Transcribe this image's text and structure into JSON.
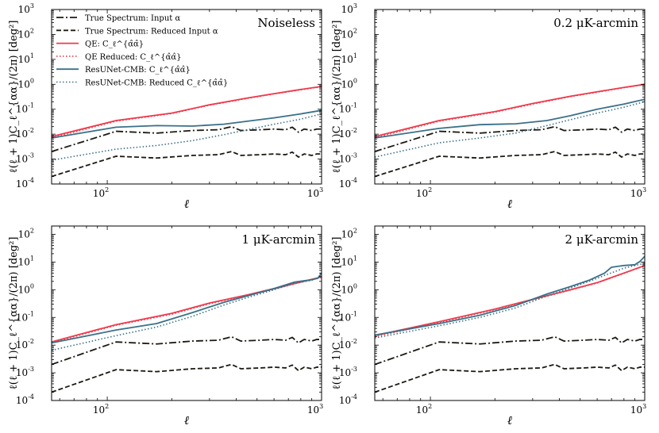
{
  "chart_data": {
    "type": "line",
    "layout": "2x2 grid of log-log line plots",
    "xlabel": "ℓ",
    "ylabel": "ℓ(ℓ + 1)C_ℓ^{αα}/(2π) [deg²]",
    "xscale": "log",
    "yscale": "log",
    "xlim": [
      55,
      1000
    ],
    "x_ticks": [
      100,
      1000
    ],
    "x_tick_labels": [
      "10^2",
      "10^3"
    ],
    "x_tick_base": "10",
    "x_tick_exponents": [
      "2",
      "3"
    ],
    "y_tick_exponents": [
      "-4",
      "-3",
      "-2",
      "-1",
      "0",
      "1",
      "2",
      "3"
    ],
    "legend": {
      "location": "top-left of first panel",
      "entries": [
        {
          "label": "True Spectrum: Input α",
          "color": "#1c1a12",
          "style": "dashdot"
        },
        {
          "label": "True Spectrum: Reduced Input α",
          "color": "#1c1a12",
          "style": "dashed"
        },
        {
          "label": "QE: C_ℓ^{α̂α̂}",
          "color": "#ee3a4c",
          "style": "solid"
        },
        {
          "label": "QE Reduced: C_ℓ^{α̂α̂}",
          "color": "#ee3a4c",
          "style": "dotted"
        },
        {
          "label": "ResUNet-CMB: C_ℓ^{α̂α̂}",
          "color": "#3a7088",
          "style": "solid"
        },
        {
          "label": "ResUNet-CMB: Reduced C_ℓ^{α̂α̂}",
          "color": "#3a7088",
          "style": "dotted"
        }
      ]
    },
    "panels": [
      {
        "title": "Noiseless",
        "ylim": [
          0.0001,
          1000
        ],
        "series": [
          {
            "name": "True Spectrum: Input α",
            "x": [
              55,
              110,
              170,
              250,
              330,
              380,
              420,
              520,
              600,
              680,
              730,
              780,
              830,
              900,
              950,
              1000
            ],
            "y": [
              0.002,
              0.013,
              0.011,
              0.014,
              0.015,
              0.02,
              0.014,
              0.015,
              0.016,
              0.015,
              0.019,
              0.012,
              0.016,
              0.014,
              0.016,
              0.016
            ]
          },
          {
            "name": "True Spectrum: Reduced Input α",
            "x": [
              55,
              110,
              170,
              250,
              330,
              380,
              420,
              520,
              600,
              680,
              730,
              780,
              830,
              900,
              950,
              1000
            ],
            "y": [
              0.0002,
              0.0013,
              0.0011,
              0.0014,
              0.0015,
              0.002,
              0.0014,
              0.0015,
              0.0016,
              0.0015,
              0.0019,
              0.0012,
              0.0016,
              0.0014,
              0.0016,
              0.0016
            ]
          },
          {
            "name": "QE: C_ℓ^{α̂α̂}",
            "x": [
              55,
              110,
              200,
              300,
              450,
              600,
              800,
              1000
            ],
            "y": [
              0.008,
              0.035,
              0.07,
              0.15,
              0.28,
              0.42,
              0.62,
              0.82
            ]
          },
          {
            "name": "QE Reduced: C_ℓ^{α̂α̂}",
            "x": [
              55,
              110,
              200,
              300,
              450,
              600,
              800,
              1000
            ],
            "y": [
              0.007,
              0.033,
              0.067,
              0.145,
              0.27,
              0.41,
              0.6,
              0.8
            ]
          },
          {
            "name": "ResUNet-CMB: C_ℓ^{α̂α̂}",
            "x": [
              55,
              80,
              110,
              170,
              250,
              350,
              450,
              600,
              800,
              1000
            ],
            "y": [
              0.007,
              0.012,
              0.019,
              0.022,
              0.021,
              0.025,
              0.033,
              0.045,
              0.065,
              0.09
            ]
          },
          {
            "name": "ResUNet-CMB: Reduced C_ℓ^{α̂α̂}",
            "x": [
              55,
              110,
              170,
              250,
              350,
              450,
              600,
              800,
              1000
            ],
            "y": [
              0.0009,
              0.0025,
              0.0035,
              0.0055,
              0.0095,
              0.015,
              0.025,
              0.04,
              0.065
            ]
          }
        ]
      },
      {
        "title": "0.2 μK-arcmin",
        "ylim": [
          0.0001,
          1000
        ],
        "series": [
          {
            "name": "True Spectrum: Input α",
            "x": [
              55,
              110,
              170,
              250,
              330,
              380,
              420,
              520,
              600,
              680,
              730,
              780,
              830,
              900,
              950,
              1000
            ],
            "y": [
              0.002,
              0.013,
              0.011,
              0.014,
              0.015,
              0.02,
              0.014,
              0.015,
              0.016,
              0.015,
              0.019,
              0.012,
              0.016,
              0.014,
              0.016,
              0.016
            ]
          },
          {
            "name": "True Spectrum: Reduced Input α",
            "x": [
              55,
              110,
              170,
              250,
              330,
              380,
              420,
              520,
              600,
              680,
              730,
              780,
              830,
              900,
              950,
              1000
            ],
            "y": [
              0.0002,
              0.0013,
              0.0011,
              0.0014,
              0.0015,
              0.002,
              0.0014,
              0.0015,
              0.0016,
              0.0015,
              0.0019,
              0.0012,
              0.0016,
              0.0014,
              0.0016,
              0.0016
            ]
          },
          {
            "name": "QE: C_ℓ^{α̂α̂}",
            "x": [
              55,
              110,
              200,
              300,
              450,
              600,
              800,
              1000
            ],
            "y": [
              0.008,
              0.035,
              0.08,
              0.17,
              0.33,
              0.5,
              0.75,
              1.0
            ]
          },
          {
            "name": "QE Reduced: C_ℓ^{α̂α̂}",
            "x": [
              55,
              110,
              200,
              300,
              450,
              600,
              800,
              1000
            ],
            "y": [
              0.007,
              0.033,
              0.076,
              0.16,
              0.32,
              0.48,
              0.73,
              0.97
            ]
          },
          {
            "name": "ResUNet-CMB: C_ℓ^{α̂α̂}",
            "x": [
              55,
              110,
              170,
              250,
              350,
              450,
              600,
              800,
              1000
            ],
            "y": [
              0.007,
              0.017,
              0.024,
              0.026,
              0.035,
              0.055,
              0.1,
              0.16,
              0.25
            ]
          },
          {
            "name": "ResUNet-CMB: Reduced C_ℓ^{α̂α̂}",
            "x": [
              55,
              110,
              170,
              250,
              350,
              450,
              600,
              800,
              1000
            ],
            "y": [
              0.0012,
              0.0045,
              0.007,
              0.011,
              0.022,
              0.038,
              0.07,
              0.12,
              0.2
            ]
          }
        ]
      },
      {
        "title": "1 μK-arcmin",
        "ylim": [
          0.0001,
          200
        ],
        "series": [
          {
            "name": "True Spectrum: Input α",
            "x": [
              55,
              110,
              170,
              250,
              330,
              380,
              420,
              520,
              600,
              680,
              730,
              780,
              830,
              900,
              950,
              1000
            ],
            "y": [
              0.002,
              0.013,
              0.011,
              0.014,
              0.015,
              0.02,
              0.014,
              0.015,
              0.016,
              0.015,
              0.019,
              0.012,
              0.016,
              0.014,
              0.016,
              0.016
            ]
          },
          {
            "name": "True Spectrum: Reduced Input α",
            "x": [
              55,
              110,
              170,
              250,
              330,
              380,
              420,
              520,
              600,
              680,
              730,
              780,
              830,
              900,
              950,
              1000
            ],
            "y": [
              0.0002,
              0.0013,
              0.0011,
              0.0014,
              0.0015,
              0.002,
              0.0014,
              0.0015,
              0.0016,
              0.0015,
              0.0019,
              0.0012,
              0.0016,
              0.0014,
              0.0016,
              0.0016
            ]
          },
          {
            "name": "QE: C_ℓ^{α̂α̂}",
            "x": [
              55,
              110,
              200,
              300,
              450,
              600,
              800,
              1000
            ],
            "y": [
              0.013,
              0.055,
              0.14,
              0.33,
              0.65,
              1.1,
              1.9,
              2.9
            ]
          },
          {
            "name": "QE Reduced: C_ℓ^{α̂α̂}",
            "x": [
              55,
              110,
              200,
              300,
              450,
              600,
              800,
              1000
            ],
            "y": [
              0.012,
              0.052,
              0.13,
              0.31,
              0.62,
              1.05,
              1.85,
              2.8
            ]
          },
          {
            "name": "ResUNet-CMB: C_ℓ^{α̂α̂}",
            "x": [
              55,
              110,
              170,
              250,
              350,
              450,
              600,
              750,
              900,
              960,
              1000
            ],
            "y": [
              0.012,
              0.035,
              0.06,
              0.15,
              0.35,
              0.6,
              1.1,
              1.9,
              2.3,
              2.6,
              4.0
            ]
          },
          {
            "name": "ResUNet-CMB: Reduced C_ℓ^{α̂α̂}",
            "x": [
              55,
              110,
              170,
              250,
              350,
              450,
              600,
              750,
              900,
              1000
            ],
            "y": [
              0.0065,
              0.022,
              0.045,
              0.11,
              0.28,
              0.52,
              1.0,
              1.7,
              2.2,
              3.0
            ]
          }
        ]
      },
      {
        "title": "2 μK-arcmin",
        "ylim": [
          0.0001,
          200
        ],
        "series": [
          {
            "name": "True Spectrum: Input α",
            "x": [
              55,
              110,
              170,
              250,
              330,
              380,
              420,
              520,
              600,
              680,
              730,
              780,
              830,
              900,
              950,
              1000
            ],
            "y": [
              0.002,
              0.013,
              0.011,
              0.014,
              0.015,
              0.02,
              0.014,
              0.015,
              0.016,
              0.015,
              0.019,
              0.012,
              0.016,
              0.014,
              0.016,
              0.016
            ]
          },
          {
            "name": "True Spectrum: Reduced Input α",
            "x": [
              55,
              110,
              170,
              250,
              330,
              380,
              420,
              520,
              600,
              680,
              730,
              780,
              830,
              900,
              950,
              1000
            ],
            "y": [
              0.0002,
              0.0013,
              0.0011,
              0.0014,
              0.0015,
              0.002,
              0.0014,
              0.0015,
              0.0016,
              0.0015,
              0.0019,
              0.0012,
              0.0016,
              0.0014,
              0.0016,
              0.0016
            ]
          },
          {
            "name": "QE: C_ℓ^{α̂α̂}",
            "x": [
              55,
              110,
              200,
              300,
              450,
              600,
              800,
              1000
            ],
            "y": [
              0.022,
              0.07,
              0.2,
              0.45,
              1.0,
              1.8,
              4.0,
              7.5
            ]
          },
          {
            "name": "QE Reduced: C_ℓ^{α̂α̂}",
            "x": [
              55,
              110,
              200,
              300,
              450,
              600,
              800,
              1000
            ],
            "y": [
              0.02,
              0.065,
              0.19,
              0.43,
              0.97,
              1.75,
              3.9,
              7.3
            ]
          },
          {
            "name": "ResUNet-CMB: C_ℓ^{α̂α̂}",
            "x": [
              55,
              110,
              170,
              250,
              350,
              450,
              550,
              650,
              700,
              800,
              900,
              950,
              1000
            ],
            "y": [
              0.023,
              0.06,
              0.12,
              0.27,
              0.7,
              1.3,
              2.2,
              4.0,
              6.5,
              7.5,
              8.0,
              10.5,
              16.0
            ]
          },
          {
            "name": "ResUNet-CMB: Reduced C_ℓ^{α̂α̂}",
            "x": [
              55,
              110,
              170,
              250,
              350,
              450,
              550,
              650,
              800,
              1000
            ],
            "y": [
              0.018,
              0.05,
              0.1,
              0.22,
              0.6,
              1.15,
              2.0,
              3.3,
              6.0,
              9.0
            ]
          }
        ]
      }
    ]
  }
}
